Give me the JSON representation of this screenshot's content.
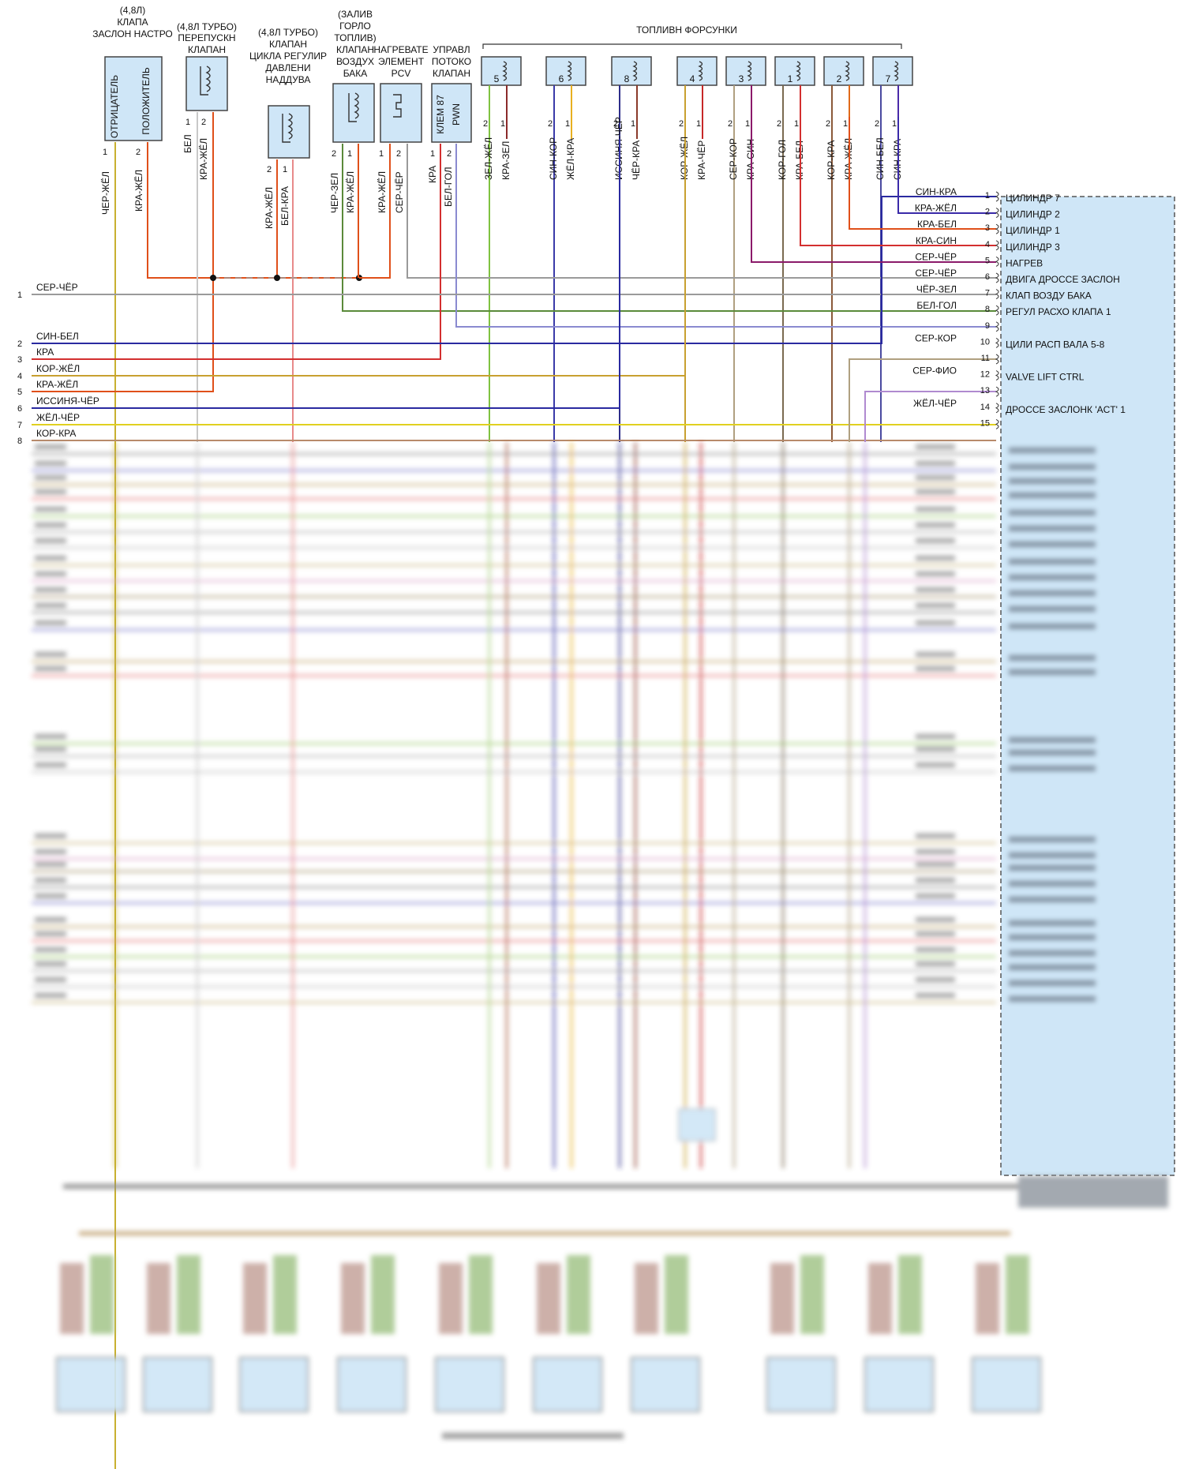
{
  "components": {
    "flap_sensor": {
      "title_lines": [
        "(4,8Л)",
        "КЛАПА",
        "ЗАСЛОН НАСТРО"
      ],
      "neg_label": "ОТРИЦАТЕЛЬ",
      "pos_label": "ПОЛОЖИТЕЛЬ",
      "pins": [
        "1",
        "2"
      ],
      "wires": [
        "ЧЕР-ЖЁЛ",
        "КРА-ЖЁЛ"
      ]
    },
    "bypass_valve": {
      "title_lines": [
        "(4,8Л ТУРБО)",
        "ПЕРЕПУСКН",
        "КЛАПАН"
      ],
      "pins": [
        "1",
        "2"
      ],
      "wires": [
        "БЕЛ",
        "КРА-ЖЁЛ"
      ]
    },
    "boost_valve": {
      "title_lines": [
        "(4,8Л ТУРБО)",
        "КЛАПАН",
        "ЦИКЛА РЕГУЛИР",
        "ДАВЛЕНИ",
        "НАДДУВА"
      ],
      "pins": [
        "2",
        "1"
      ],
      "wires": [
        "КРА-ЖЁЛ",
        "БЕЛ-КРА"
      ]
    },
    "tank_vent": {
      "title_lines": [
        "(ЗАЛИВ",
        "ГОРЛО",
        "ТОПЛИВ)",
        "КЛАПАН",
        "ВОЗДУХ",
        "БАКА"
      ],
      "pins": [
        "2",
        "1"
      ],
      "wires": [
        "ЧЕР-ЗЕЛ",
        "КРА-ЖЁЛ"
      ]
    },
    "pcv_heater": {
      "title_lines": [
        "НАГРЕВАТЕ",
        "ЭЛЕМЕНТ",
        "PCV"
      ],
      "pins": [
        "1",
        "2"
      ],
      "wires": [
        "КРА-ЖЁЛ",
        "СЕР-ЧЁР"
      ]
    },
    "flow_valve": {
      "title_lines": [
        "УПРАВЛ",
        "ПОТОКО",
        "КЛАПАН"
      ],
      "label_line1": "КЛЕМ 87",
      "label_line2": "PWN",
      "pins": [
        "1",
        "2"
      ],
      "wires": [
        "КРА",
        "БЕЛ-ГОЛ"
      ]
    },
    "injectors_title": "ТОПЛИВН ФОРСУНКИ"
  },
  "injectors": [
    {
      "num": "5",
      "wires": [
        "ЗЕЛ-ЖЁЛ",
        "КРА-ЗЕЛ"
      ],
      "c1": "#7fc241",
      "c2": "#8b2a2a"
    },
    {
      "num": "6",
      "wires": [
        "СИН-КОР",
        "ЖЁЛ-КРА"
      ],
      "c1": "#3a3aa8",
      "c2": "#e8b020"
    },
    {
      "num": "8",
      "wires": [
        "ИССИНЯ-ЧЁР",
        "ЧЁР-КРА"
      ],
      "c1": "#2e2e8a",
      "c2": "#8b3a2a"
    },
    {
      "num": "4",
      "wires": [
        "КОР-ЖЁЛ",
        "КРА-ЧЁР"
      ],
      "c1": "#c8a030",
      "c2": "#c62828"
    },
    {
      "num": "3",
      "wires": [
        "СЕР-КОР",
        "КРА-СИН"
      ],
      "c1": "#b0a080",
      "c2": "#8b1a6a"
    },
    {
      "num": "1",
      "wires": [
        "КОР-ГОЛ",
        "КРА-БЕЛ"
      ],
      "c1": "#7a6a50",
      "c2": "#d32f2f"
    },
    {
      "num": "2",
      "wires": [
        "КОР-КРА",
        "КРА-ЖЁЛ"
      ],
      "c1": "#8b5a3a",
      "c2": "#e06a1a"
    },
    {
      "num": "7",
      "wires": [
        "СИН-БЕЛ",
        "СИН-КРА"
      ],
      "c1": "#4a4aa0",
      "c2": "#4a2aa8"
    }
  ],
  "left_rows": [
    {
      "n": "1",
      "label": "СЕР-ЧЁР"
    },
    {
      "n": "2",
      "label": "СИН-БЕЛ"
    },
    {
      "n": "3",
      "label": "КРА"
    },
    {
      "n": "4",
      "label": "КОР-ЖЁЛ"
    },
    {
      "n": "5",
      "label": "КРА-ЖЁЛ"
    },
    {
      "n": "6",
      "label": "ИССИНЯ-ЧЁР"
    },
    {
      "n": "7",
      "label": "ЖЁЛ-ЧЁР"
    },
    {
      "n": "8",
      "label": "КОР-КРА"
    }
  ],
  "pcm_rows": [
    {
      "n": "1",
      "wire": "СИН-КРА",
      "func": "ЦИЛИНДР 7"
    },
    {
      "n": "2",
      "wire": "КРА-ЖЁЛ",
      "func": "ЦИЛИНДР 2"
    },
    {
      "n": "3",
      "wire": "КРА-БЕЛ",
      "func": "ЦИЛИНДР 1"
    },
    {
      "n": "4",
      "wire": "КРА-СИН",
      "func": "ЦИЛИНДР 3"
    },
    {
      "n": "5",
      "wire": "СЕР-ЧЁР",
      "func": "НАГРЕВ"
    },
    {
      "n": "6",
      "wire": "СЕР-ЧЁР",
      "func": "ДВИГА ДРОССЕ ЗАСЛОН"
    },
    {
      "n": "7",
      "wire": "ЧЁР-ЗЕЛ",
      "func": "КЛАП ВОЗДУ БАКА"
    },
    {
      "n": "8",
      "wire": "БЕЛ-ГОЛ",
      "func": "РЕГУЛ РАСХО КЛАПА 1"
    },
    {
      "n": "9",
      "wire": "",
      "func": ""
    },
    {
      "n": "10",
      "wire": "СЕР-КОР",
      "func": "ЦИЛИ РАСП ВАЛА 5-8"
    },
    {
      "n": "11",
      "wire": "",
      "func": ""
    },
    {
      "n": "12",
      "wire": "СЕР-ФИО",
      "func": "VALVE LIFT CTRL"
    },
    {
      "n": "13",
      "wire": "",
      "func": ""
    },
    {
      "n": "14",
      "wire": "ЖЁЛ-ЧЁР",
      "func": "ДРОССЕ ЗАСЛОНК 'ACT' 1"
    },
    {
      "n": "15",
      "wire": "",
      "func": ""
    }
  ],
  "colors": {
    "pcm_fill": "#cfe6f7",
    "component_fill": "#cfe6f7",
    "grey_wire": "#9a9a9a",
    "blue": "#2a2aa0",
    "red": "#d32f2f",
    "orange_red": "#e0501a",
    "olive": "#c8b030",
    "yellow": "#e0d020"
  }
}
